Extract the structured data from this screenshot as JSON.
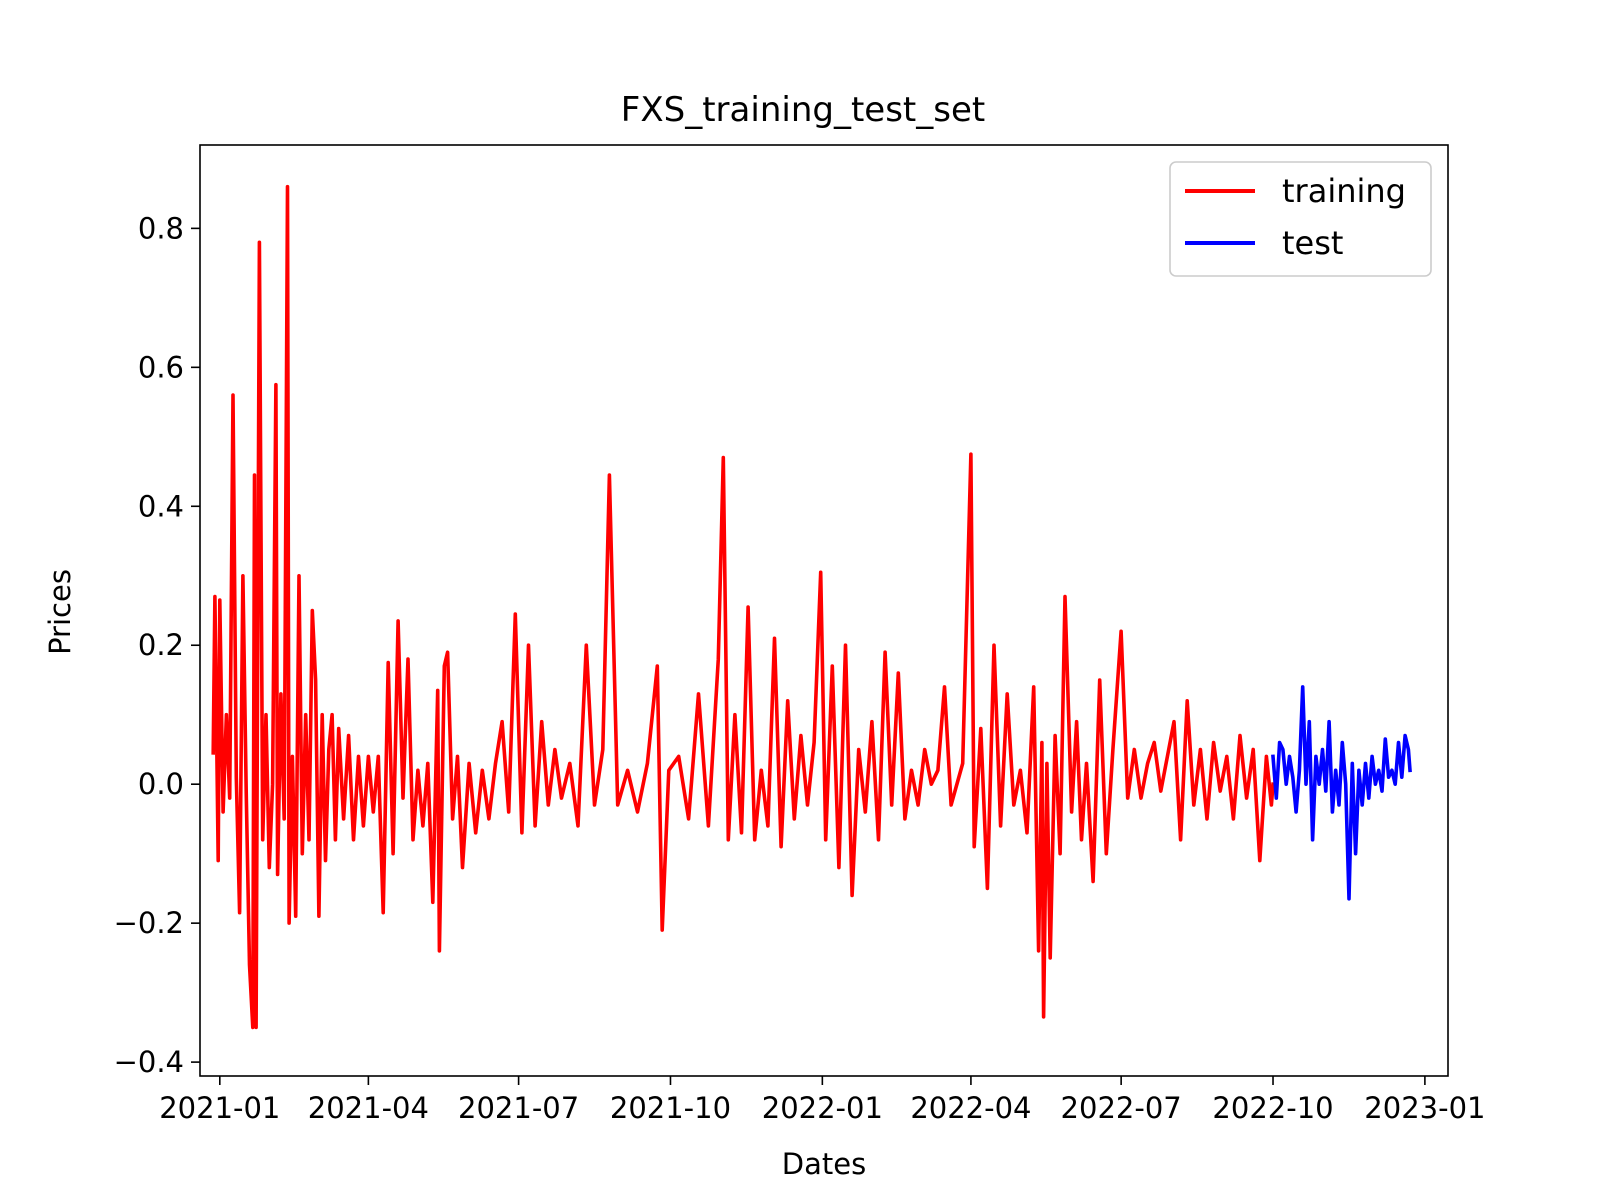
{
  "chart_data": {
    "type": "line",
    "title": "FXS_training_test_set",
    "xlabel": "Dates",
    "ylabel": "Prices",
    "xlim": [
      "2020-12-20",
      "2023-01-15"
    ],
    "ylim": [
      -0.42,
      0.92
    ],
    "x_ticks": [
      "2021-01",
      "2021-04",
      "2021-07",
      "2021-10",
      "2022-01",
      "2022-04",
      "2022-07",
      "2022-10",
      "2023-01"
    ],
    "y_ticks": [
      -0.4,
      -0.2,
      0.0,
      0.2,
      0.4,
      0.6,
      0.8
    ],
    "y_tick_labels": [
      "−0.4",
      "−0.2",
      "0.0",
      "0.2",
      "0.4",
      "0.6",
      "0.8"
    ],
    "grid": false,
    "legend": {
      "position": "top-right",
      "entries": [
        "training",
        "test"
      ]
    },
    "series": [
      {
        "name": "training",
        "color": "#ff0000",
        "points": [
          [
            "2020-12-28",
            0.045
          ],
          [
            "2020-12-29",
            0.27
          ],
          [
            "2020-12-31",
            -0.11
          ],
          [
            "2021-01-01",
            0.265
          ],
          [
            "2021-01-03",
            -0.04
          ],
          [
            "2021-01-05",
            0.1
          ],
          [
            "2021-01-07",
            -0.02
          ],
          [
            "2021-01-09",
            0.56
          ],
          [
            "2021-01-11",
            0.01
          ],
          [
            "2021-01-13",
            -0.185
          ],
          [
            "2021-01-15",
            0.3
          ],
          [
            "2021-01-17",
            -0.01
          ],
          [
            "2021-01-19",
            -0.26
          ],
          [
            "2021-01-21",
            -0.35
          ],
          [
            "2021-01-22",
            0.445
          ],
          [
            "2021-01-23",
            -0.35
          ],
          [
            "2021-01-25",
            0.78
          ],
          [
            "2021-01-27",
            -0.08
          ],
          [
            "2021-01-29",
            0.1
          ],
          [
            "2021-01-31",
            -0.12
          ],
          [
            "2021-02-02",
            0.0
          ],
          [
            "2021-02-04",
            0.575
          ],
          [
            "2021-02-05",
            -0.13
          ],
          [
            "2021-02-07",
            0.13
          ],
          [
            "2021-02-09",
            -0.05
          ],
          [
            "2021-02-11",
            0.86
          ],
          [
            "2021-02-12",
            -0.2
          ],
          [
            "2021-02-14",
            0.04
          ],
          [
            "2021-02-16",
            -0.19
          ],
          [
            "2021-02-18",
            0.3
          ],
          [
            "2021-02-20",
            -0.1
          ],
          [
            "2021-02-22",
            0.1
          ],
          [
            "2021-02-24",
            -0.08
          ],
          [
            "2021-02-26",
            0.25
          ],
          [
            "2021-02-28",
            0.15
          ],
          [
            "2021-03-02",
            -0.19
          ],
          [
            "2021-03-04",
            0.1
          ],
          [
            "2021-03-06",
            -0.11
          ],
          [
            "2021-03-08",
            0.05
          ],
          [
            "2021-03-10",
            0.1
          ],
          [
            "2021-03-12",
            -0.08
          ],
          [
            "2021-03-14",
            0.08
          ],
          [
            "2021-03-17",
            -0.05
          ],
          [
            "2021-03-20",
            0.07
          ],
          [
            "2021-03-23",
            -0.08
          ],
          [
            "2021-03-26",
            0.04
          ],
          [
            "2021-03-29",
            -0.06
          ],
          [
            "2021-04-01",
            0.04
          ],
          [
            "2021-04-04",
            -0.04
          ],
          [
            "2021-04-07",
            0.04
          ],
          [
            "2021-04-10",
            -0.185
          ],
          [
            "2021-04-13",
            0.175
          ],
          [
            "2021-04-16",
            -0.1
          ],
          [
            "2021-04-19",
            0.235
          ],
          [
            "2021-04-22",
            -0.02
          ],
          [
            "2021-04-25",
            0.18
          ],
          [
            "2021-04-28",
            -0.08
          ],
          [
            "2021-05-01",
            0.02
          ],
          [
            "2021-05-04",
            -0.06
          ],
          [
            "2021-05-07",
            0.03
          ],
          [
            "2021-05-10",
            -0.17
          ],
          [
            "2021-05-13",
            0.135
          ],
          [
            "2021-05-14",
            -0.24
          ],
          [
            "2021-05-17",
            0.17
          ],
          [
            "2021-05-19",
            0.19
          ],
          [
            "2021-05-22",
            -0.05
          ],
          [
            "2021-05-25",
            0.04
          ],
          [
            "2021-05-28",
            -0.12
          ],
          [
            "2021-06-01",
            0.03
          ],
          [
            "2021-06-05",
            -0.07
          ],
          [
            "2021-06-09",
            0.02
          ],
          [
            "2021-06-13",
            -0.05
          ],
          [
            "2021-06-17",
            0.03
          ],
          [
            "2021-06-21",
            0.09
          ],
          [
            "2021-06-25",
            -0.04
          ],
          [
            "2021-06-29",
            0.245
          ],
          [
            "2021-07-03",
            -0.07
          ],
          [
            "2021-07-07",
            0.2
          ],
          [
            "2021-07-11",
            -0.06
          ],
          [
            "2021-07-15",
            0.09
          ],
          [
            "2021-07-19",
            -0.03
          ],
          [
            "2021-07-23",
            0.05
          ],
          [
            "2021-07-27",
            -0.02
          ],
          [
            "2021-08-01",
            0.03
          ],
          [
            "2021-08-06",
            -0.06
          ],
          [
            "2021-08-11",
            0.2
          ],
          [
            "2021-08-16",
            -0.03
          ],
          [
            "2021-08-21",
            0.05
          ],
          [
            "2021-08-25",
            0.445
          ],
          [
            "2021-08-30",
            -0.03
          ],
          [
            "2021-09-05",
            0.02
          ],
          [
            "2021-09-11",
            -0.04
          ],
          [
            "2021-09-17",
            0.03
          ],
          [
            "2021-09-23",
            0.17
          ],
          [
            "2021-09-26",
            -0.21
          ],
          [
            "2021-09-30",
            0.02
          ],
          [
            "2021-10-06",
            0.04
          ],
          [
            "2021-10-12",
            -0.05
          ],
          [
            "2021-10-18",
            0.13
          ],
          [
            "2021-10-24",
            -0.06
          ],
          [
            "2021-10-30",
            0.18
          ],
          [
            "2021-11-02",
            0.47
          ],
          [
            "2021-11-05",
            -0.08
          ],
          [
            "2021-11-09",
            0.1
          ],
          [
            "2021-11-13",
            -0.07
          ],
          [
            "2021-11-17",
            0.255
          ],
          [
            "2021-11-21",
            -0.08
          ],
          [
            "2021-11-25",
            0.02
          ],
          [
            "2021-11-29",
            -0.06
          ],
          [
            "2021-12-03",
            0.21
          ],
          [
            "2021-12-07",
            -0.09
          ],
          [
            "2021-12-11",
            0.12
          ],
          [
            "2021-12-15",
            -0.05
          ],
          [
            "2021-12-19",
            0.07
          ],
          [
            "2021-12-23",
            -0.03
          ],
          [
            "2021-12-27",
            0.06
          ],
          [
            "2021-12-31",
            0.305
          ],
          [
            "2022-01-03",
            -0.08
          ],
          [
            "2022-01-07",
            0.17
          ],
          [
            "2022-01-11",
            -0.12
          ],
          [
            "2022-01-15",
            0.2
          ],
          [
            "2022-01-19",
            -0.16
          ],
          [
            "2022-01-23",
            0.05
          ],
          [
            "2022-01-27",
            -0.04
          ],
          [
            "2022-01-31",
            0.09
          ],
          [
            "2022-02-04",
            -0.08
          ],
          [
            "2022-02-08",
            0.19
          ],
          [
            "2022-02-12",
            -0.03
          ],
          [
            "2022-02-16",
            0.16
          ],
          [
            "2022-02-20",
            -0.05
          ],
          [
            "2022-02-24",
            0.02
          ],
          [
            "2022-02-28",
            -0.03
          ],
          [
            "2022-03-04",
            0.05
          ],
          [
            "2022-03-08",
            0.0
          ],
          [
            "2022-03-12",
            0.02
          ],
          [
            "2022-03-16",
            0.14
          ],
          [
            "2022-03-20",
            -0.03
          ],
          [
            "2022-03-27",
            0.03
          ],
          [
            "2022-04-01",
            0.475
          ],
          [
            "2022-04-03",
            -0.09
          ],
          [
            "2022-04-07",
            0.08
          ],
          [
            "2022-04-11",
            -0.15
          ],
          [
            "2022-04-15",
            0.2
          ],
          [
            "2022-04-19",
            -0.06
          ],
          [
            "2022-04-23",
            0.13
          ],
          [
            "2022-04-27",
            -0.03
          ],
          [
            "2022-05-01",
            0.02
          ],
          [
            "2022-05-05",
            -0.07
          ],
          [
            "2022-05-09",
            0.14
          ],
          [
            "2022-05-12",
            -0.24
          ],
          [
            "2022-05-14",
            0.06
          ],
          [
            "2022-05-15",
            -0.335
          ],
          [
            "2022-05-17",
            0.03
          ],
          [
            "2022-05-19",
            -0.25
          ],
          [
            "2022-05-22",
            0.07
          ],
          [
            "2022-05-25",
            -0.1
          ],
          [
            "2022-05-28",
            0.27
          ],
          [
            "2022-06-01",
            -0.04
          ],
          [
            "2022-06-04",
            0.09
          ],
          [
            "2022-06-07",
            -0.08
          ],
          [
            "2022-06-10",
            0.03
          ],
          [
            "2022-06-14",
            -0.14
          ],
          [
            "2022-06-18",
            0.15
          ],
          [
            "2022-06-22",
            -0.1
          ],
          [
            "2022-06-26",
            0.05
          ],
          [
            "2022-07-01",
            0.22
          ],
          [
            "2022-07-05",
            -0.02
          ],
          [
            "2022-07-09",
            0.05
          ],
          [
            "2022-07-13",
            -0.02
          ],
          [
            "2022-07-17",
            0.03
          ],
          [
            "2022-07-21",
            0.06
          ],
          [
            "2022-07-25",
            -0.01
          ],
          [
            "2022-07-29",
            0.04
          ],
          [
            "2022-08-02",
            0.09
          ],
          [
            "2022-08-06",
            -0.08
          ],
          [
            "2022-08-10",
            0.12
          ],
          [
            "2022-08-14",
            -0.03
          ],
          [
            "2022-08-18",
            0.05
          ],
          [
            "2022-08-22",
            -0.05
          ],
          [
            "2022-08-26",
            0.06
          ],
          [
            "2022-08-30",
            -0.01
          ],
          [
            "2022-09-03",
            0.04
          ],
          [
            "2022-09-07",
            -0.05
          ],
          [
            "2022-09-11",
            0.07
          ],
          [
            "2022-09-15",
            -0.02
          ],
          [
            "2022-09-19",
            0.05
          ],
          [
            "2022-09-23",
            -0.11
          ],
          [
            "2022-09-27",
            0.04
          ],
          [
            "2022-09-30",
            -0.03
          ],
          [
            "2022-10-01",
            0.0
          ]
        ]
      },
      {
        "name": "test",
        "color": "#0000ff",
        "points": [
          [
            "2022-10-01",
            0.04
          ],
          [
            "2022-10-03",
            -0.02
          ],
          [
            "2022-10-05",
            0.06
          ],
          [
            "2022-10-07",
            0.05
          ],
          [
            "2022-10-09",
            0.0
          ],
          [
            "2022-10-11",
            0.04
          ],
          [
            "2022-10-13",
            0.01
          ],
          [
            "2022-10-15",
            -0.04
          ],
          [
            "2022-10-17",
            0.02
          ],
          [
            "2022-10-19",
            0.14
          ],
          [
            "2022-10-21",
            0.0
          ],
          [
            "2022-10-23",
            0.09
          ],
          [
            "2022-10-25",
            -0.08
          ],
          [
            "2022-10-27",
            0.04
          ],
          [
            "2022-10-29",
            0.0
          ],
          [
            "2022-10-31",
            0.05
          ],
          [
            "2022-11-02",
            -0.01
          ],
          [
            "2022-11-04",
            0.09
          ],
          [
            "2022-11-06",
            -0.04
          ],
          [
            "2022-11-08",
            0.02
          ],
          [
            "2022-11-10",
            -0.03
          ],
          [
            "2022-11-12",
            0.06
          ],
          [
            "2022-11-14",
            0.0
          ],
          [
            "2022-11-16",
            -0.165
          ],
          [
            "2022-11-18",
            0.03
          ],
          [
            "2022-11-20",
            -0.1
          ],
          [
            "2022-11-22",
            0.02
          ],
          [
            "2022-11-24",
            -0.03
          ],
          [
            "2022-11-26",
            0.03
          ],
          [
            "2022-11-28",
            -0.02
          ],
          [
            "2022-11-30",
            0.04
          ],
          [
            "2022-12-02",
            0.0
          ],
          [
            "2022-12-04",
            0.02
          ],
          [
            "2022-12-06",
            -0.01
          ],
          [
            "2022-12-08",
            0.065
          ],
          [
            "2022-12-10",
            0.01
          ],
          [
            "2022-12-12",
            0.02
          ],
          [
            "2022-12-14",
            0.0
          ],
          [
            "2022-12-16",
            0.06
          ],
          [
            "2022-12-18",
            0.01
          ],
          [
            "2022-12-20",
            0.07
          ],
          [
            "2022-12-22",
            0.05
          ],
          [
            "2022-12-23",
            0.02
          ]
        ]
      }
    ]
  }
}
